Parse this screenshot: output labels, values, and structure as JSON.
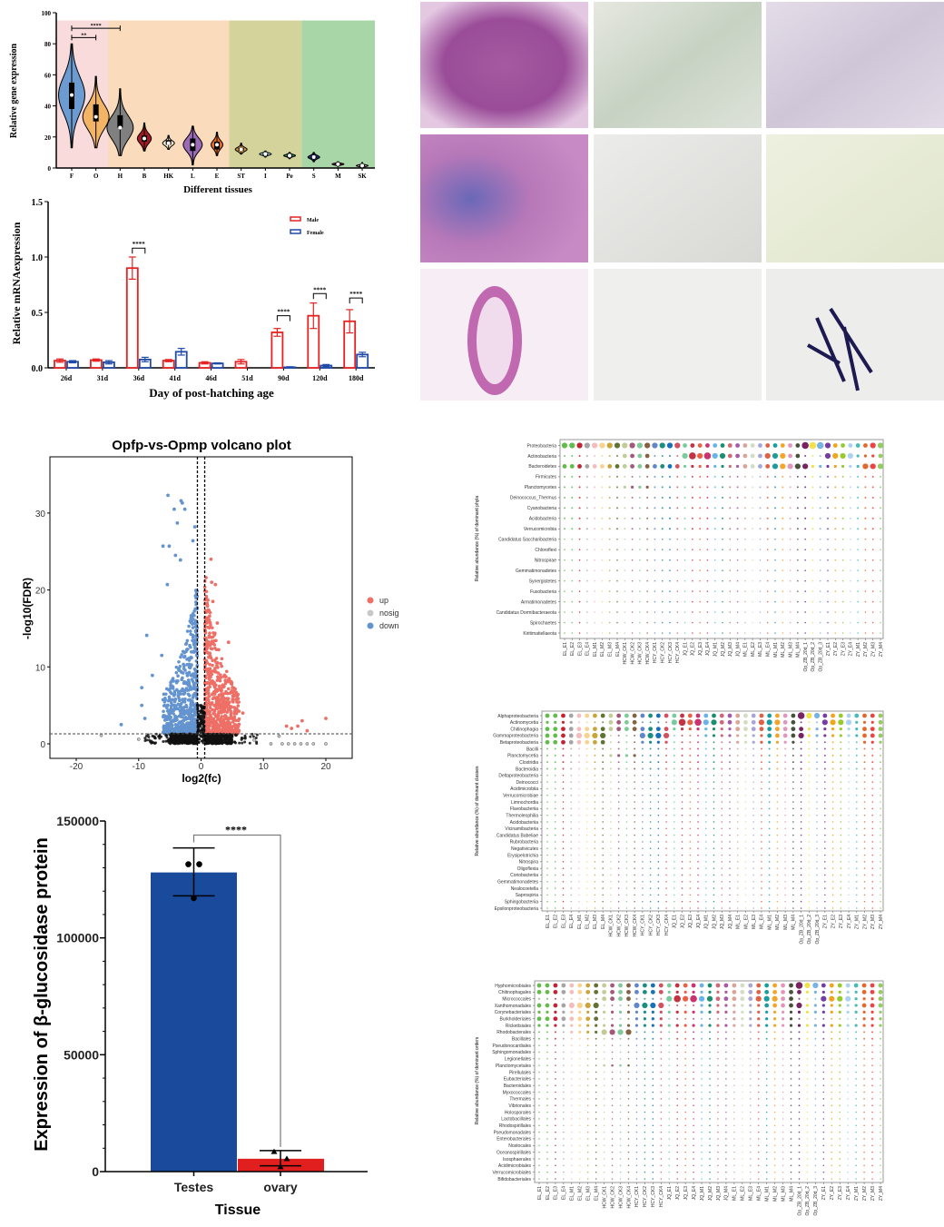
{
  "chart_data": [
    {
      "id": "violin",
      "type": "violin",
      "xlabel": "Different tissues",
      "ylabel": "Relative gene expression",
      "ylim": [
        0,
        100
      ],
      "yticks": [
        0,
        20,
        40,
        60,
        80,
        100
      ],
      "band_colors": [
        "#f9dbdb",
        "#fadcbd",
        "#d3d39b",
        "#a9d6a7"
      ],
      "bands": [
        [
          0,
          1
        ],
        [
          2,
          6
        ],
        [
          7,
          9
        ],
        [
          10,
          12
        ]
      ],
      "band_top": 95,
      "tissues": [
        {
          "name": "F",
          "median": 47,
          "q1": 38,
          "q3": 55,
          "min": 13,
          "max": 80,
          "color": "#6b9bd1"
        },
        {
          "name": "O",
          "median": 33,
          "q1": 30,
          "q3": 41,
          "min": 13,
          "max": 59,
          "color": "#f3b565"
        },
        {
          "name": "H",
          "median": 26,
          "q1": 26,
          "q3": 34,
          "min": 8,
          "max": 51,
          "color": "#808080"
        },
        {
          "name": "B",
          "median": 19,
          "q1": 17,
          "q3": 21,
          "min": 11,
          "max": 29,
          "color": "#a31b22"
        },
        {
          "name": "HK",
          "median": 16,
          "q1": 15,
          "q3": 18,
          "min": 12,
          "max": 21,
          "color": "#f6eccb"
        },
        {
          "name": "L",
          "median": 15,
          "q1": 11,
          "q3": 19,
          "min": 2,
          "max": 27,
          "color": "#9b6bb8"
        },
        {
          "name": "E",
          "median": 15,
          "q1": 12,
          "q3": 17,
          "min": 8,
          "max": 23,
          "color": "#e8671f"
        },
        {
          "name": "ST",
          "median": 12,
          "q1": 11,
          "q3": 13,
          "min": 9,
          "max": 16,
          "color": "#cf8f3f"
        },
        {
          "name": "I",
          "median": 9,
          "q1": 8,
          "q3": 9.5,
          "min": 7,
          "max": 11,
          "color": "#a9dbe6"
        },
        {
          "name": "Pe",
          "median": 8,
          "q1": 7,
          "q3": 8.5,
          "min": 6,
          "max": 10,
          "color": "#2a8a4b"
        },
        {
          "name": "S",
          "median": 7,
          "q1": 6,
          "q3": 7.5,
          "min": 4,
          "max": 10,
          "color": "#1f2c6b"
        },
        {
          "name": "M",
          "median": 2.5,
          "q1": 2,
          "q3": 3,
          "min": 1,
          "max": 4,
          "color": "#7b1b5b"
        },
        {
          "name": "SK",
          "median": 1.5,
          "q1": 1,
          "q3": 2,
          "min": 0.5,
          "max": 3.5,
          "color": "#e899b1"
        }
      ],
      "significance": [
        {
          "from": "F",
          "to": "O",
          "label": "**",
          "y": 84
        },
        {
          "from": "F",
          "to": "H",
          "label": "****",
          "y": 90
        }
      ]
    },
    {
      "id": "mrna",
      "type": "bar",
      "xlabel": "Day of post-hatching age",
      "ylabel": "Relative mRNAexpression",
      "ylim": [
        0,
        1.5
      ],
      "yticks": [
        "0.0",
        "0.5",
        "1.0",
        "1.5"
      ],
      "categories": [
        "26d",
        "31d",
        "36d",
        "41d",
        "46d",
        "51d",
        "90d",
        "120d",
        "180d"
      ],
      "legend": "top-right",
      "series": [
        {
          "name": "Male",
          "color": "#e52222",
          "values": [
            0.065,
            0.07,
            0.9,
            0.065,
            0.045,
            0.055,
            0.32,
            0.47,
            0.42
          ],
          "errors": [
            0.015,
            0.01,
            0.1,
            0.01,
            0.01,
            0.02,
            0.035,
            0.115,
            0.105
          ]
        },
        {
          "name": "Female",
          "color": "#1f4aa8",
          "values": [
            0.055,
            0.05,
            0.075,
            0.145,
            0.04,
            0.0,
            0.005,
            0.02,
            0.12
          ],
          "errors": [
            0.01,
            0.015,
            0.02,
            0.03,
            0.005,
            0.0,
            0.005,
            0.01,
            0.02
          ]
        }
      ],
      "significance": [
        {
          "category": "36d",
          "label": "****",
          "y": 1.08
        },
        {
          "category": "90d",
          "label": "****",
          "y": 0.47
        },
        {
          "category": "120d",
          "label": "****",
          "y": 0.67
        },
        {
          "category": "180d",
          "label": "****",
          "y": 0.63
        }
      ]
    },
    {
      "id": "volcano",
      "type": "scatter",
      "title": "Opfp-vs-Opmp volcano plot",
      "xlabel": "log2(fc)",
      "ylabel": "-log10(FDR)",
      "xlim": [
        -24,
        24
      ],
      "ylim": [
        -1.7,
        37
      ],
      "xticks": [
        -20,
        -10,
        0,
        10,
        20
      ],
      "yticks": [
        0,
        10,
        20,
        30
      ],
      "thresholds": {
        "log2fc": [
          -0.585,
          0.585
        ],
        "neg_log10_fdr": 1.3
      },
      "legend": {
        "position": "right",
        "items": [
          {
            "label": "up",
            "color": "#ee6f66"
          },
          {
            "label": "nosig",
            "color": "#c8c8c8"
          },
          {
            "label": "down",
            "color": "#6494d0"
          }
        ]
      },
      "points": [
        {
          "x": -5.3,
          "y": 32.3,
          "g": "down"
        },
        {
          "x": -3.2,
          "y": 31.6,
          "g": "down"
        },
        {
          "x": -3.0,
          "y": 31.3,
          "g": "down"
        },
        {
          "x": -4.3,
          "y": 30.5,
          "g": "down"
        },
        {
          "x": -2.6,
          "y": 30.5,
          "g": "down"
        },
        {
          "x": -3.8,
          "y": 28.7,
          "g": "down"
        },
        {
          "x": -1.0,
          "y": 28.2,
          "g": "down"
        },
        {
          "x": -1.3,
          "y": 26.4,
          "g": "down"
        },
        {
          "x": -6.1,
          "y": 25.7,
          "g": "down"
        },
        {
          "x": -5.1,
          "y": 25.7,
          "g": "down"
        },
        {
          "x": -4.1,
          "y": 24.5,
          "g": "down"
        },
        {
          "x": -3.3,
          "y": 23.9,
          "g": "down"
        },
        {
          "x": -8.7,
          "y": 14.1,
          "g": "down"
        },
        {
          "x": -9.5,
          "y": 7.3,
          "g": "down"
        },
        {
          "x": -7.8,
          "y": 8.9,
          "g": "down"
        },
        {
          "x": -12.8,
          "y": 2.5,
          "g": "down"
        },
        {
          "x": -9.5,
          "y": 5.0,
          "g": "down"
        },
        {
          "x": -9.0,
          "y": 3.3,
          "g": "down"
        },
        {
          "x": -6.3,
          "y": 11.5,
          "g": "down"
        },
        {
          "x": -5.4,
          "y": 20.7,
          "g": "down"
        },
        {
          "x": 1.6,
          "y": 24.0,
          "g": "up"
        },
        {
          "x": 0.8,
          "y": 21.6,
          "g": "up"
        },
        {
          "x": 1.7,
          "y": 21.0,
          "g": "up"
        },
        {
          "x": 2.3,
          "y": 20.7,
          "g": "up"
        },
        {
          "x": 1.9,
          "y": 18.5,
          "g": "up"
        },
        {
          "x": 2.6,
          "y": 15.7,
          "g": "up"
        },
        {
          "x": 4.4,
          "y": 13.2,
          "g": "up"
        },
        {
          "x": 5.1,
          "y": 5.7,
          "g": "up"
        },
        {
          "x": 6.7,
          "y": 4.0,
          "g": "up"
        },
        {
          "x": 13.7,
          "y": 2.3,
          "g": "up"
        },
        {
          "x": 16.2,
          "y": 3.0,
          "g": "up"
        },
        {
          "x": 20.0,
          "y": 3.3,
          "g": "up"
        },
        {
          "x": 15.5,
          "y": 2.3,
          "g": "up"
        },
        {
          "x": 14.5,
          "y": 2.0,
          "g": "up"
        },
        {
          "x": 17.0,
          "y": 1.7,
          "g": "up"
        },
        {
          "x": -16.0,
          "y": 1.1,
          "g": "nosig"
        },
        {
          "x": -10.0,
          "y": 0.6,
          "g": "nosig"
        },
        {
          "x": 11.2,
          "y": 0.0,
          "g": "nosig"
        },
        {
          "x": 13.0,
          "y": 0.0,
          "g": "nosig"
        },
        {
          "x": 14.0,
          "y": 0.0,
          "g": "nosig"
        },
        {
          "x": 15.0,
          "y": 0.0,
          "g": "nosig"
        },
        {
          "x": 16.0,
          "y": 0.0,
          "g": "nosig"
        },
        {
          "x": 17.0,
          "y": 0.0,
          "g": "nosig"
        },
        {
          "x": 18.0,
          "y": 0.0,
          "g": "nosig"
        },
        {
          "x": 20.0,
          "y": 0.0,
          "g": "nosig"
        },
        {
          "x": 8.5,
          "y": 0.5,
          "g": "nosig"
        },
        {
          "x": 12.5,
          "y": 1.0,
          "g": "nosig"
        }
      ]
    },
    {
      "id": "protein",
      "type": "bar",
      "xlabel": "Tissue",
      "ylabel": "Expression of β-glucosidase protein",
      "ylim": [
        0,
        150000
      ],
      "yticks": [
        "0",
        "50000",
        "100000",
        "150000"
      ],
      "categories": [
        "Testes",
        "ovary"
      ],
      "values": [
        128000,
        5500
      ],
      "error_low": [
        118000,
        2500
      ],
      "error_high": [
        138500,
        9000
      ],
      "colors": [
        "#1a4a9c",
        "#e21f1f"
      ],
      "replicates": [
        [
          131500,
          131500,
          117000
        ],
        [
          8500,
          5500,
          2000
        ]
      ],
      "significance": {
        "label": "****",
        "y": 144000
      }
    },
    {
      "id": "dot_phyla",
      "type": "scatter",
      "ylabel": "Relative abundance (%) of dominant phyla",
      "rows": [
        "Proteobacteria",
        "Actinobacteria",
        "Bacteroidetes",
        "Firmicutes",
        "Planctomycetes",
        "Deinococcus_Thermus",
        "Cyanobacteria",
        "Acidobacteria",
        "Verrucomicrobia",
        "Candidatus Saccharibacteria",
        "Chloroflexi",
        "Nitrospirae",
        "Gemmatimonadetes",
        "Synergistetes",
        "Fusobacteria",
        "Armatimonadetes",
        "Candidatus Dormibacteraeota",
        "Spirochaetes",
        "Kiritimatiellaeota"
      ],
      "abundance_levels": {
        "0": "4444444444444444333333333333333355543333344",
        "1": "1111111133331111454544333334443311144442223",
        "2": "3333333333333333222222223333444442222222444",
        "4": "1111111122221111111111111111111111111111111"
      }
    },
    {
      "id": "dot_classes",
      "type": "scatter",
      "ylabel": "Relative abundance (%) of dominant classes",
      "rows": [
        "Alphaproteobacteria",
        "Actinomycetia",
        "Chitinophagia",
        "Gammaproteobacteria",
        "Betaproteobacteria",
        "Bacilli",
        "Planctomycetia",
        "Clostridia",
        "Bacteroidia",
        "Deltaproteobacteria",
        "Deinococci",
        "Acidimicrobiia",
        "Verrucomicrobiae",
        "Limnochordia",
        "Flavobacteriia",
        "Thermoleophilia",
        "Acidobacteriia",
        "Vicinamibacteria",
        "Candidatus Babeliae",
        "Rubrobacteria",
        "Negativicutes",
        "Erysipelotrichia",
        "Nitrospira",
        "Oligoflexia",
        "Coriobacteriia",
        "Gemmatimonadetes",
        "Nealocoetella",
        "Saprospiria",
        "Sphingobacteriia",
        "Epsilonproteobacteria"
      ],
      "abundance_levels": {
        "0": "3333333333333333333333333333333354433333333",
        "1": "2222111133331111454544333334443311144442223",
        "2": "3333333333333333222222223333333332222222333",
        "3": "3333444411114444111122222222333342222222333",
        "4": "3333333311112222111111112222222211111111222",
        "6": "1111111122221111111111111111111111111111111"
      }
    },
    {
      "id": "dot_orders",
      "type": "scatter",
      "ylabel": "Relative abundance (%) of dominant orders",
      "rows": [
        "Hyphomicrobiales",
        "Chitinophagales",
        "Micrococcales",
        "Xanthomonadales",
        "Corynebacteriales",
        "Burkholderiales",
        "Rickettsiales",
        "Rhodobacterales",
        "Bacillales",
        "Pseudonocardiales",
        "Sphingomonadales",
        "Legionellales",
        "Planctomycetales",
        "Pirellulales",
        "Eubacteriales",
        "Bacteroidales",
        "Myxococcales",
        "Thermales",
        "Vibrionales",
        "Holosporales",
        "Lactobacillales",
        "Rhodospirillales",
        "Pseudomonadales",
        "Enterobacterales",
        "Nostocales",
        "Oceanospirillales",
        "Isosphaerales",
        "Acidimicrobiales",
        "Verrucomicrobiales",
        "Bifidobacteriales"
      ],
      "abundance_levels": {
        "0": "3333333333333333333333333333333354433333333",
        "1": "3333333333333333222222223333333332222222333",
        "2": "1111111133331111454544333334443311144442223",
        "3": "3333444411114444111122222222333342222222333",
        "4": "2222222222222222222222222222222222222222222",
        "5": "3333333311112222111111112222222211111111222",
        "6": "2222222222222222222222222222222222222222222",
        "7": "1111222244441111111111111111111111111111111",
        "12": "1111111122221111111111111111111111111111111"
      }
    }
  ],
  "samples": [
    "EL_E1",
    "EL_E2",
    "EL_E3",
    "EL_E4",
    "EL_M1",
    "EL_M2",
    "EL_M3",
    "EL_M4",
    "HCW_CK1",
    "HCW_CK2",
    "HCW_CK3",
    "HCW_CK4",
    "HCY_CK1",
    "HCY_CK2",
    "HCY_CK3",
    "HCY_CK4",
    "JQ_E1",
    "JQ_E2",
    "JQ_E3",
    "JQ_E4",
    "JQ_M1",
    "JQ_M2",
    "JQ_M3",
    "JQ_M4",
    "ML_E1",
    "ML_E2",
    "ML_E3",
    "ML_E4",
    "ML_M1",
    "ML_M2",
    "ML_M3",
    "ML_M4",
    "Op_ZB_20d_1",
    "Op_ZB_20d_2",
    "Op_ZB_20d_3",
    "ZY_E1",
    "ZY_E2",
    "ZY_E3",
    "ZY_E4",
    "ZY_M1",
    "ZY_M2",
    "ZY_M3",
    "ZY_M4"
  ],
  "sample_colors": [
    "#5ab840",
    "#5ab840",
    "#c0182a",
    "#a0a0a0",
    "#f4b8b8",
    "#f8d088",
    "#c8a030",
    "#5a6a28",
    "#c0c890",
    "#a05070",
    "#78c890",
    "#805838",
    "#5a80c8",
    "#10887a",
    "#0a68b8",
    "#d04858",
    "#70c898",
    "#c02838",
    "#e85838",
    "#c82868",
    "#60b0e8",
    "#108868",
    "#d06070",
    "#a050a8",
    "#d8a090",
    "#d0dcc0",
    "#a0a0d8",
    "#e05838",
    "#109898",
    "#f0a020",
    "#e090b8",
    "#404830",
    "#701858",
    "#f0e040",
    "#70b0e0",
    "#7030a0",
    "#f0a010",
    "#90c820",
    "#a8d0f0",
    "#40b8b0",
    "#e06020",
    "#f03838",
    "#90c858"
  ]
}
